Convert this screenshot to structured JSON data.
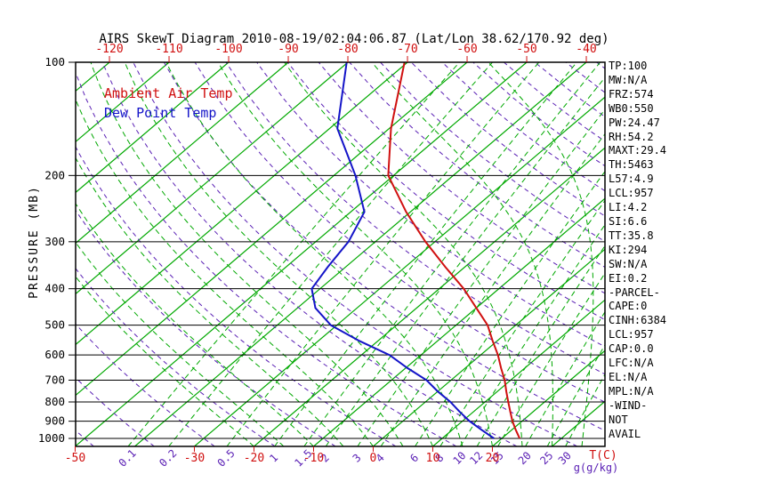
{
  "title": "AIRS SkewT Diagram 2010-08-19/02:04:06.87 (Lat/Lon 38.62/170.92 deg)",
  "legend": {
    "ambient": "Ambient Air Temp",
    "dew": "Dew Point Temp"
  },
  "colors": {
    "red": "#d01010",
    "green": "#00a800",
    "blue": "#1414c8",
    "purple": "#5b21b5",
    "black": "#000000",
    "background": "#ffffff"
  },
  "axes": {
    "pressure_label": "PRESSURE (MB)",
    "pressure_ticks": [
      100,
      200,
      300,
      400,
      500,
      600,
      700,
      800,
      900,
      1000
    ],
    "top_temperature_ticks": [
      -120,
      -110,
      -100,
      -90,
      -80,
      -70,
      -60,
      -50,
      -40
    ],
    "bottom_temperature_ticks": [
      -50,
      -30,
      -20,
      -10,
      0,
      10,
      20
    ],
    "temperature_unit": "T(C)",
    "mixing_ratio_ticks": [
      0.1,
      0.2,
      0.5,
      1,
      1.5,
      2,
      3,
      4,
      6,
      8,
      10,
      12,
      15,
      20,
      25,
      30
    ],
    "mixing_ratio_unit": "g(g/kg)"
  },
  "stats": [
    "TP:100",
    "MW:N/A",
    "FRZ:574",
    "WB0:550",
    "PW:24.47",
    "RH:54.2",
    "MAXT:29.4",
    "TH:5463",
    "L57:4.9",
    "LCL:957",
    "LI:4.2",
    "SI:6.6",
    "TT:35.8",
    "KI:294",
    "SW:N/A",
    "EI:0.2",
    "-PARCEL-",
    "CAPE:0",
    "CINH:6384",
    "LCL:957",
    "CAP:0.0",
    "LFC:N/A",
    "EL:N/A",
    "MPL:N/A",
    "-WIND-",
    "NOT",
    "AVAIL"
  ],
  "chart_data": {
    "type": "line",
    "title": "AIRS SkewT Diagram 2010-08-19/02:04:06.87 (Lat/Lon 38.62/170.92 deg)",
    "xlabel": "T(C)",
    "ylabel": "PRESSURE (MB)",
    "pressure_range_mb": [
      100,
      1050
    ],
    "top_axis_temperature_range_c": [
      -120,
      -40
    ],
    "grid": {
      "isotherms_c": {
        "min": -120,
        "max": 40,
        "step": 10
      },
      "dry_adiabats_c": {
        "min": -50,
        "max": 190,
        "step": 10
      },
      "moist_adiabats_c": {
        "min": -20,
        "max": 40,
        "step": 5
      }
    },
    "mixing_ratio_lines_g_kg": [
      0.1,
      0.2,
      0.5,
      1,
      1.5,
      2,
      3,
      4,
      6,
      8,
      10,
      12,
      15,
      20,
      25,
      30
    ],
    "series": [
      {
        "name": "Ambient Air Temp",
        "color": "#d01010",
        "points_mb_c": [
          [
            1000,
            23.0
          ],
          [
            950,
            20.7
          ],
          [
            900,
            18.4
          ],
          [
            850,
            16.2
          ],
          [
            800,
            13.9
          ],
          [
            750,
            11.5
          ],
          [
            700,
            9.0
          ],
          [
            650,
            6.0
          ],
          [
            600,
            2.9
          ],
          [
            550,
            -0.8
          ],
          [
            500,
            -4.7
          ],
          [
            450,
            -10.0
          ],
          [
            400,
            -15.9
          ],
          [
            350,
            -23.3
          ],
          [
            300,
            -31.6
          ],
          [
            250,
            -40.7
          ],
          [
            200,
            -50.9
          ],
          [
            150,
            -59.7
          ],
          [
            100,
            -70.5
          ]
        ]
      },
      {
        "name": "Dew Point Temp",
        "color": "#1414c8",
        "points_mb_c": [
          [
            1000,
            18.7
          ],
          [
            950,
            15.0
          ],
          [
            900,
            11.2
          ],
          [
            850,
            7.7
          ],
          [
            800,
            4.2
          ],
          [
            750,
            0.0
          ],
          [
            700,
            -4.1
          ],
          [
            650,
            -9.7
          ],
          [
            600,
            -15.3
          ],
          [
            550,
            -23.2
          ],
          [
            500,
            -31.0
          ],
          [
            450,
            -37.0
          ],
          [
            400,
            -41.4
          ],
          [
            350,
            -43.0
          ],
          [
            300,
            -44.5
          ],
          [
            250,
            -47.7
          ],
          [
            200,
            -56.4
          ],
          [
            150,
            -68.7
          ],
          [
            100,
            -80.2
          ]
        ]
      }
    ]
  }
}
